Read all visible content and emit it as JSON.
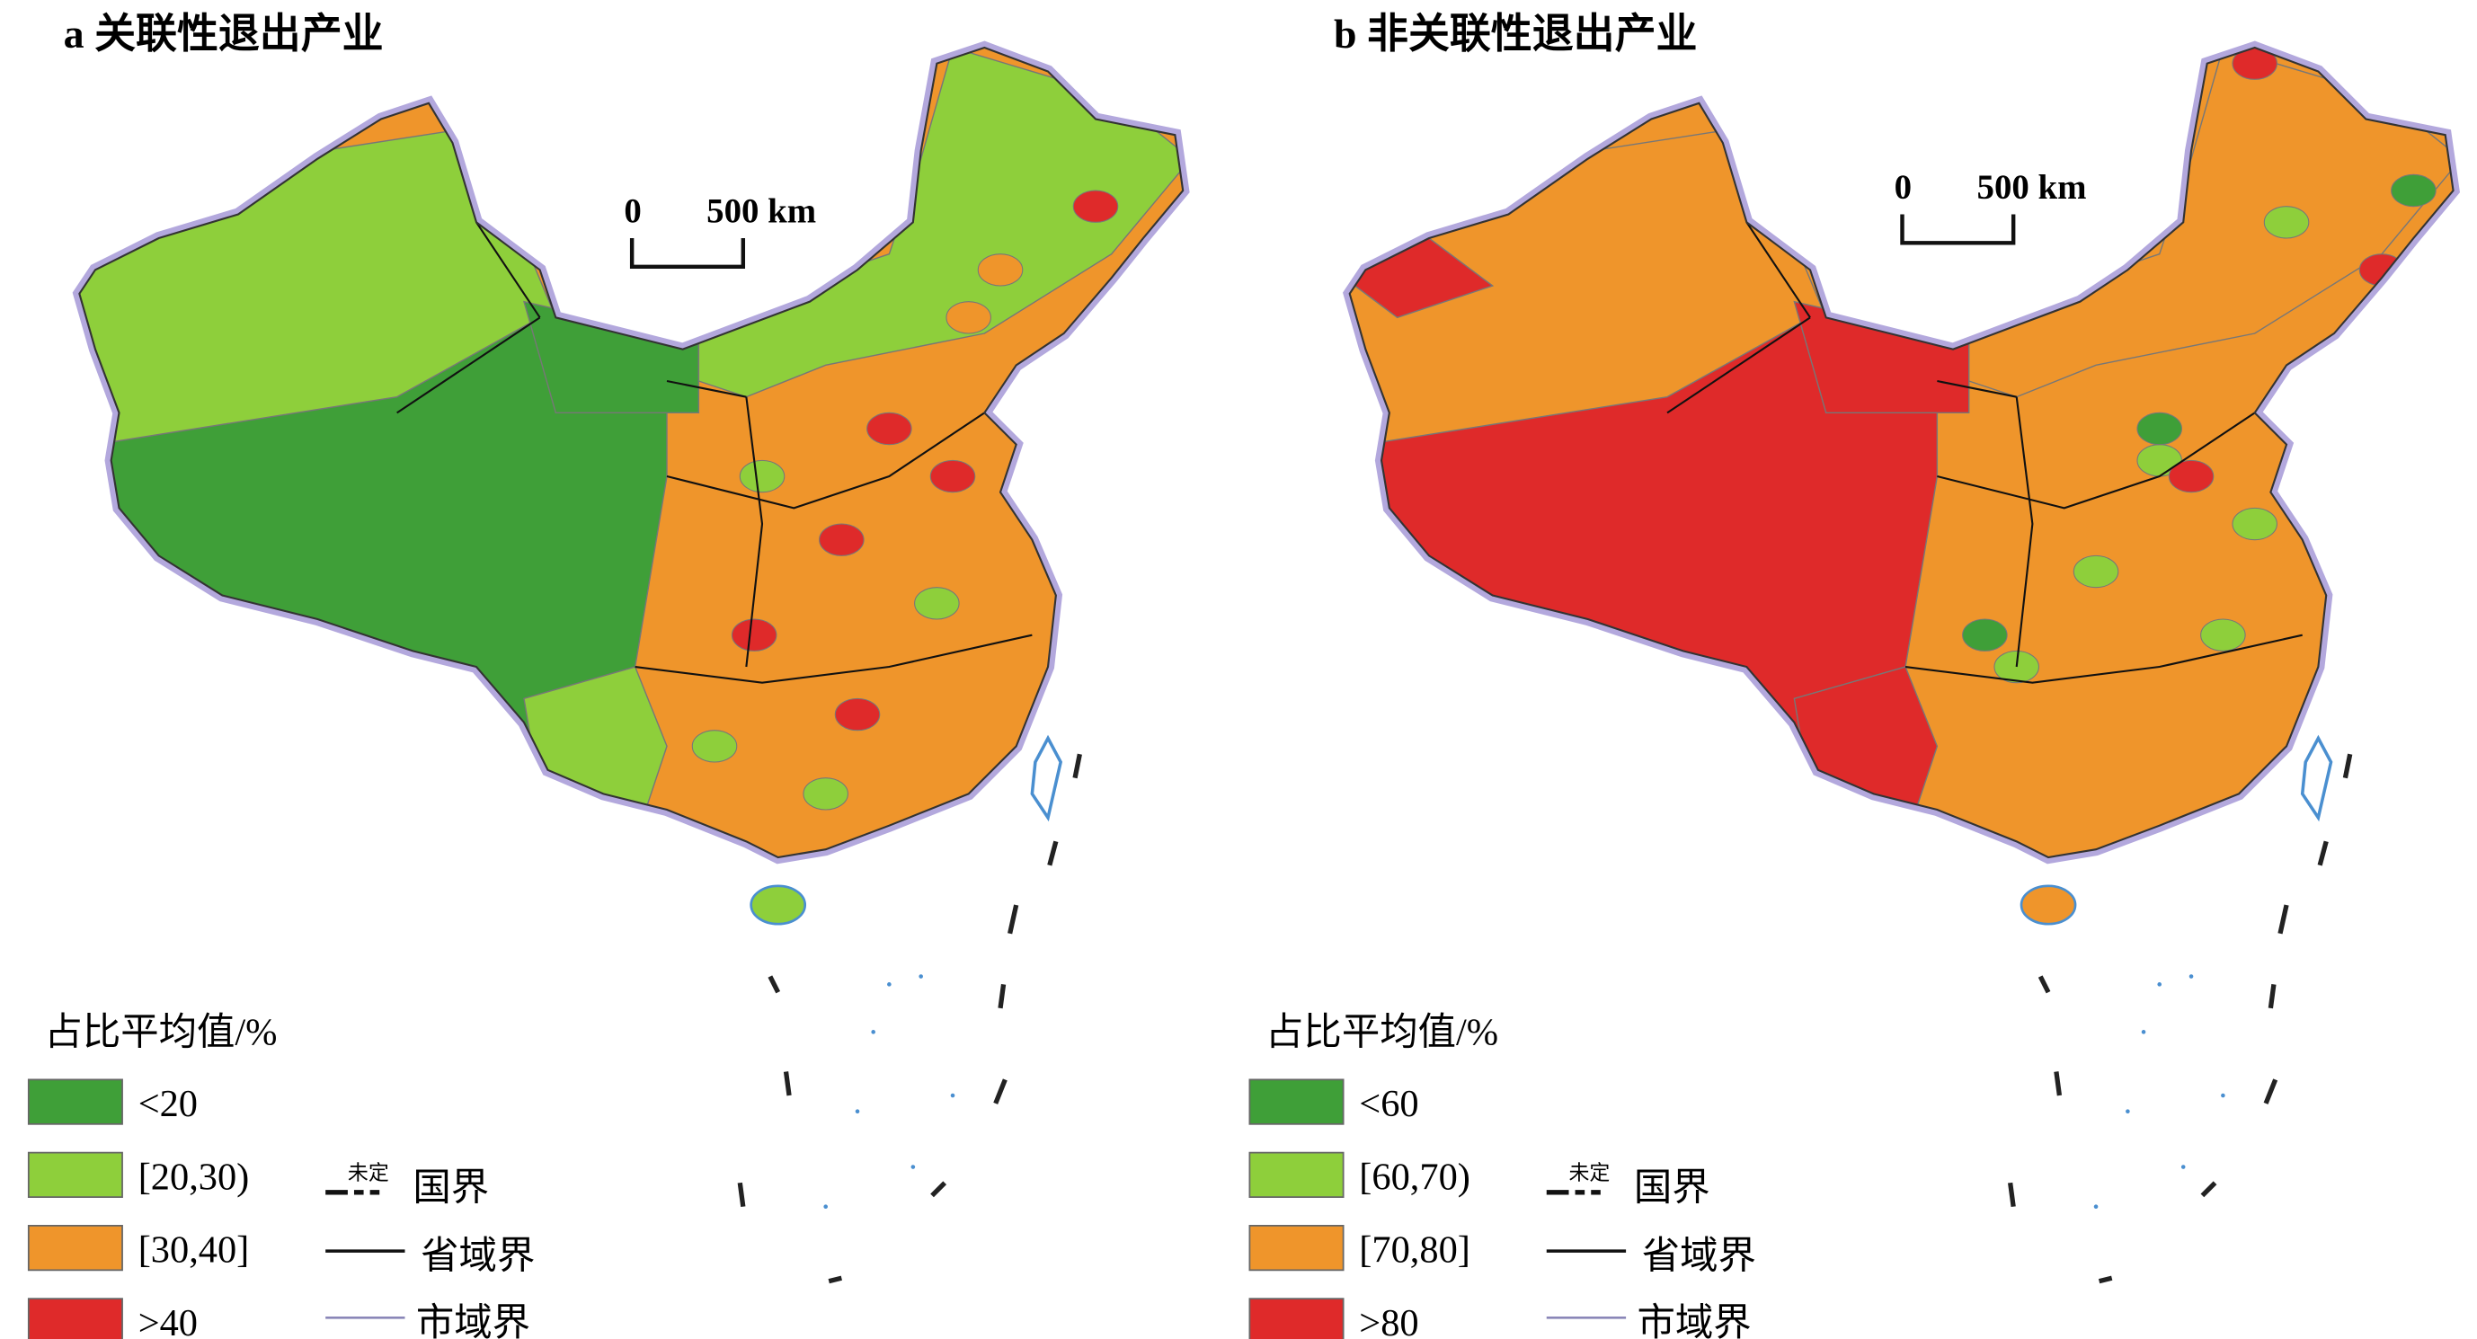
{
  "panels": [
    {
      "title": "a 关联性退出产业",
      "scale_bar": {
        "start": "0",
        "end": "500 km"
      },
      "legend": {
        "title": "占比平均值/%",
        "items": [
          {
            "label": "<20",
            "color": "#3f9f38"
          },
          {
            "label": "[20,30)",
            "color": "#8ecf3b"
          },
          {
            "label": "[30,40]",
            "color": "#ef952b"
          },
          {
            "label": ">40",
            "color": "#df2a2a"
          }
        ]
      },
      "boundary_legend": {
        "undetermined": "未定",
        "national": "国界",
        "provincial": "省域界",
        "municipal": "市域界"
      }
    },
    {
      "title": "b 非关联性退出产业",
      "scale_bar": {
        "start": "0",
        "end": "500 km"
      },
      "legend": {
        "title": "占比平均值/%",
        "items": [
          {
            "label": "<60",
            "color": "#3f9f38"
          },
          {
            "label": "[60,70)",
            "color": "#8ecf3b"
          },
          {
            "label": "[70,80]",
            "color": "#ef952b"
          },
          {
            "label": ">80",
            "color": "#df2a2a"
          }
        ]
      },
      "boundary_legend": {
        "undetermined": "未定",
        "national": "国界",
        "provincial": "省域界",
        "municipal": "市域界"
      }
    }
  ]
}
